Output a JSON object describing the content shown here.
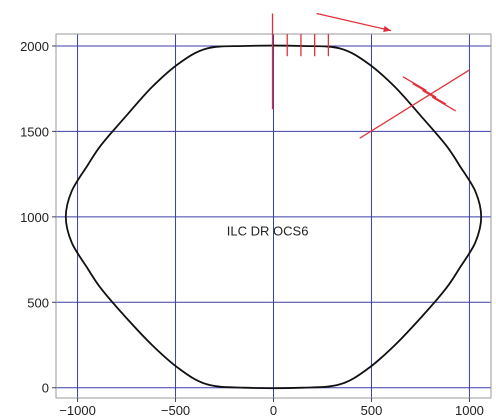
{
  "chart_data": {
    "type": "line",
    "title": "",
    "xlabel": "",
    "ylabel": "",
    "xlim": [
      -1110,
      1110
    ],
    "ylim": [
      -60,
      2070
    ],
    "grid": true,
    "x_ticks": [
      -1000,
      -500,
      0,
      500,
      1000
    ],
    "y_ticks": [
      0,
      500,
      1000,
      1500,
      2000
    ],
    "x_tick_labels": [
      "−1000",
      "−500",
      "0",
      "500",
      "1000"
    ],
    "y_tick_labels": [
      "0",
      "500",
      "1000",
      "1500",
      "2000"
    ],
    "annotation": "ILC DR OCS6",
    "colors": {
      "ring": "#111111",
      "grid": "#3b3fa8",
      "markup": "#e0303a"
    },
    "series": [
      {
        "values": [
          [
            -150,
            2000
          ],
          [
            150,
            2000
          ],
          [
            340,
            1985
          ],
          [
            480,
            1900
          ],
          [
            620,
            1760
          ],
          [
            760,
            1580
          ],
          [
            880,
            1420
          ],
          [
            950,
            1300
          ],
          [
            1030,
            1150
          ],
          [
            1060,
            1000
          ],
          [
            1030,
            850
          ],
          [
            950,
            700
          ],
          [
            880,
            580
          ],
          [
            760,
            420
          ],
          [
            620,
            250
          ],
          [
            480,
            110
          ],
          [
            340,
            20
          ],
          [
            150,
            0
          ],
          [
            -150,
            0
          ],
          [
            -340,
            20
          ],
          [
            -480,
            110
          ],
          [
            -620,
            250
          ],
          [
            -760,
            420
          ],
          [
            -880,
            580
          ],
          [
            -950,
            700
          ],
          [
            -1030,
            850
          ],
          [
            -1060,
            1000
          ],
          [
            -1030,
            1150
          ],
          [
            -950,
            1300
          ],
          [
            -880,
            1420
          ],
          [
            -760,
            1580
          ],
          [
            -620,
            1760
          ],
          [
            -480,
            1900
          ],
          [
            -340,
            1985
          ],
          [
            -150,
            2000
          ]
        ]
      }
    ],
    "markups": {
      "vertical_line": [
        [
          -5,
          1630
        ],
        [
          -5,
          2190
        ]
      ],
      "horizontal_ticks": [
        [
          [
            70,
            1940
          ],
          [
            70,
            2070
          ]
        ],
        [
          [
            140,
            1940
          ],
          [
            140,
            2070
          ]
        ],
        [
          [
            210,
            1940
          ],
          [
            210,
            2070
          ]
        ],
        [
          [
            280,
            1940
          ],
          [
            280,
            2070
          ]
        ]
      ],
      "arrow": [
        [
          220,
          2190
        ],
        [
          600,
          2090
        ]
      ],
      "diagonal_line": [
        [
          440,
          1460
        ],
        [
          1000,
          1860
        ]
      ],
      "diagonal_ticks": [
        [
          [
            660,
            1820
          ],
          [
            780,
            1740
          ]
        ],
        [
          [
            710,
            1780
          ],
          [
            830,
            1700
          ]
        ],
        [
          [
            760,
            1740
          ],
          [
            880,
            1660
          ]
        ],
        [
          [
            810,
            1700
          ],
          [
            930,
            1620
          ]
        ]
      ]
    }
  }
}
